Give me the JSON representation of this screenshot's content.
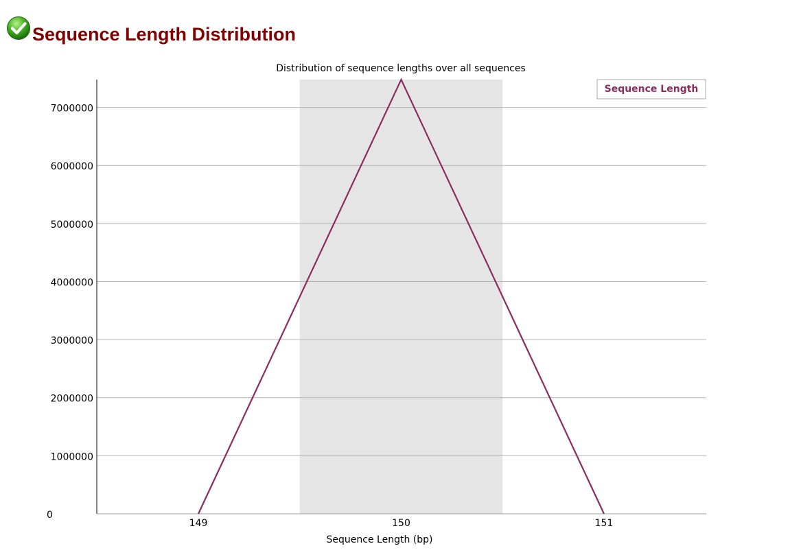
{
  "page": {
    "title": "Sequence Length Distribution",
    "status_icon": "check-icon",
    "status": "pass"
  },
  "chart_data": {
    "type": "line",
    "title": "Distribution of sequence lengths over all sequences",
    "xlabel": "Sequence Length (bp)",
    "ylabel": "",
    "categories": [
      "149",
      "150",
      "151"
    ],
    "series": [
      {
        "name": "Sequence Length",
        "values": [
          0,
          7480000,
          0
        ],
        "color": "#8b2c5e"
      }
    ],
    "ylim": [
      0,
      7480000
    ],
    "yticks": [
      0,
      1000000,
      2000000,
      3000000,
      4000000,
      5000000,
      6000000,
      7000000
    ],
    "ytick_labels": [
      "0",
      "1000000",
      "2000000",
      "3000000",
      "4000000",
      "5000000",
      "6000000",
      "7000000"
    ],
    "highlight_band": {
      "from": "149.5",
      "to": "150.5",
      "color": "#e5e5e5"
    },
    "grid": true,
    "legend_position": "top-right"
  }
}
